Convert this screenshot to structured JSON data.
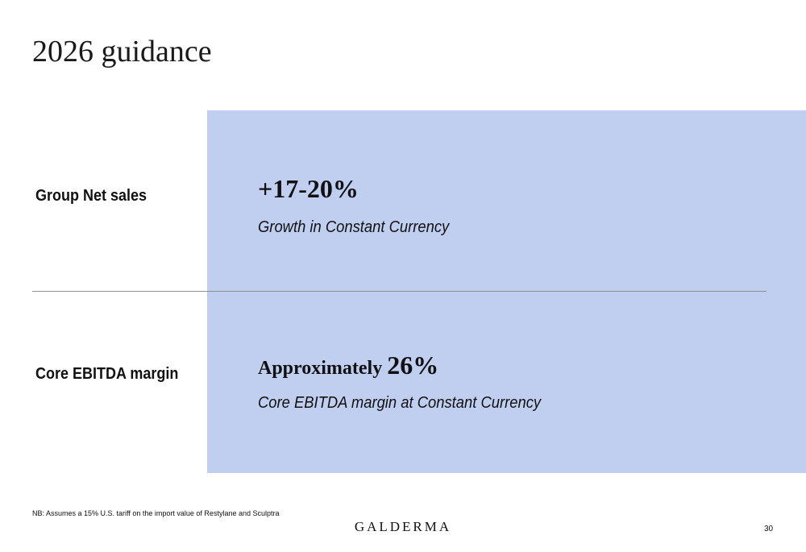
{
  "header": {
    "title": "2026 guidance"
  },
  "rows": [
    {
      "label": "Group Net sales",
      "value": "+17-20%",
      "description": "Growth in Constant Currency"
    },
    {
      "label": "Core EBITDA margin",
      "value_prefix": "Approximately",
      "value": "26%",
      "description": "Core EBITDA margin at Constant Currency"
    }
  ],
  "footer": {
    "note": "NB: Assumes a 15% U.S. tariff on the import value of Restylane and Sculptra",
    "logo": "GALDERMA",
    "page_number": "30"
  }
}
